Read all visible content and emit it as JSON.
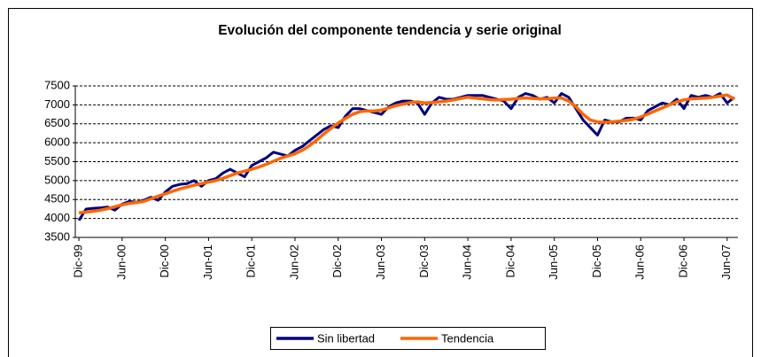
{
  "chart_data": {
    "type": "line",
    "title": "Evolución del componente tendencia y serie original",
    "categories": [
      "Dic-99",
      null,
      null,
      null,
      null,
      null,
      "Jun-00",
      null,
      null,
      null,
      null,
      null,
      "Dic-00",
      null,
      null,
      null,
      null,
      null,
      "Jun-01",
      null,
      null,
      null,
      null,
      null,
      "Dic-01",
      null,
      null,
      null,
      null,
      null,
      "Jun-02",
      null,
      null,
      null,
      null,
      null,
      "Dic-02",
      null,
      null,
      null,
      null,
      null,
      "Jun-03",
      null,
      null,
      null,
      null,
      null,
      "Dic-03",
      null,
      null,
      null,
      null,
      null,
      "Jun-04",
      null,
      null,
      null,
      null,
      null,
      "Dic-04",
      null,
      null,
      null,
      null,
      null,
      "Jun-05",
      null,
      null,
      null,
      null,
      null,
      "Dic-05",
      null,
      null,
      null,
      null,
      null,
      "Jun-06",
      null,
      null,
      null,
      null,
      null,
      "Dic-06",
      null,
      null,
      null,
      null,
      null,
      "Jun-07",
      null
    ],
    "series": [
      {
        "name": "Sin libertad",
        "color": "#000080",
        "values": [
          3950,
          4250,
          4270,
          4280,
          4300,
          4220,
          4380,
          4450,
          4430,
          4480,
          4560,
          4480,
          4700,
          4850,
          4900,
          4920,
          5000,
          4850,
          5000,
          5050,
          5200,
          5300,
          5200,
          5100,
          5400,
          5500,
          5600,
          5750,
          5700,
          5650,
          5800,
          5900,
          6050,
          6200,
          6350,
          6450,
          6400,
          6700,
          6900,
          6900,
          6850,
          6800,
          6750,
          6950,
          7050,
          7100,
          7100,
          7050,
          6750,
          7050,
          7200,
          7150,
          7150,
          7200,
          7250,
          7250,
          7250,
          7200,
          7150,
          7100,
          6900,
          7200,
          7300,
          7250,
          7150,
          7200,
          7050,
          7300,
          7200,
          6900,
          6600,
          6400,
          6200,
          6600,
          6550,
          6550,
          6650,
          6650,
          6600,
          6850,
          6950,
          7050,
          7000,
          7150,
          6900,
          7250,
          7200,
          7250,
          7200,
          7300,
          7050,
          7200
        ]
      },
      {
        "name": "Tendencia",
        "color": "#FF6600",
        "values": [
          4150,
          4170,
          4190,
          4220,
          4260,
          4310,
          4360,
          4400,
          4420,
          4450,
          4520,
          4590,
          4650,
          4720,
          4780,
          4830,
          4880,
          4920,
          4960,
          5000,
          5060,
          5130,
          5200,
          5250,
          5300,
          5360,
          5430,
          5510,
          5590,
          5650,
          5710,
          5800,
          5920,
          6070,
          6230,
          6380,
          6520,
          6640,
          6750,
          6820,
          6840,
          6840,
          6860,
          6920,
          6980,
          7020,
          7060,
          7080,
          7050,
          7060,
          7080,
          7100,
          7130,
          7170,
          7200,
          7180,
          7160,
          7140,
          7130,
          7140,
          7150,
          7170,
          7180,
          7170,
          7160,
          7160,
          7180,
          7180,
          7100,
          6950,
          6750,
          6600,
          6550,
          6540,
          6550,
          6570,
          6590,
          6620,
          6680,
          6760,
          6840,
          6920,
          7000,
          7080,
          7130,
          7160,
          7170,
          7180,
          7200,
          7230,
          7260,
          7150
        ]
      }
    ],
    "ylim": [
      3500,
      7500
    ],
    "yticks": [
      3500,
      4000,
      4500,
      5000,
      5500,
      6000,
      6500,
      7000,
      7500
    ],
    "grid": true
  }
}
